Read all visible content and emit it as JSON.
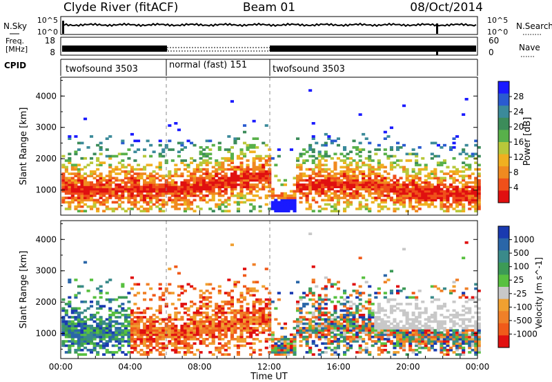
{
  "header": {
    "station": "Clyde River (fitACF)",
    "beam": "Beam 01",
    "date": "08/Oct/2014"
  },
  "strip_panels": {
    "nsky_label": "N.Sky",
    "nsearch_label": "N.Search",
    "log_top": "10^5",
    "log_bottom": "10^0",
    "freq_label_line1": "Freq.",
    "freq_label_line2": "[MHz]",
    "freq_ticks": [
      "18",
      "8"
    ],
    "nave_label": "Nave",
    "nave_ticks": [
      "60",
      "0"
    ],
    "cpid_label": "CPID"
  },
  "cpid_segments": [
    {
      "label": "twofsound 3503",
      "start_hour": 0,
      "end_hour": 6
    },
    {
      "label": "normal (fast) 151",
      "start_hour": 6,
      "end_hour": 12
    },
    {
      "label": "twofsound 3503",
      "start_hour": 12,
      "end_hour": 24
    }
  ],
  "chart_data": [
    {
      "type": "heatmap",
      "title": "Power",
      "xlabel": "",
      "ylabel": "Slant Range [km]",
      "y_ticks": [
        "1000",
        "2000",
        "3000",
        "4000"
      ],
      "ylim": [
        200,
        4600
      ],
      "colorbar_label": "Power [dB]",
      "colorbar_ticks": [
        "4",
        "8",
        "12",
        "16",
        "20",
        "24",
        "28"
      ],
      "colorbar_colors": [
        "#1a1aff",
        "#2a5bd0",
        "#3b8a9a",
        "#3c8c5a",
        "#58b04a",
        "#b8c83a",
        "#f0b020",
        "#f08a20",
        "#f0501a",
        "#e01010"
      ]
    },
    {
      "type": "heatmap",
      "title": "Velocity",
      "xlabel": "Time UT",
      "ylabel": "Slant Range [km]",
      "x_ticks": [
        "00:00",
        "04:00",
        "08:00",
        "12:00",
        "16:00",
        "20:00",
        "00:00"
      ],
      "y_ticks": [
        "1000",
        "2000",
        "3000",
        "4000"
      ],
      "ylim": [
        200,
        4600
      ],
      "colorbar_label": "Velocity [m s^-1]",
      "colorbar_ticks": [
        "1000",
        "500",
        "100",
        "25",
        "-25",
        "-100",
        "-500",
        "-1000"
      ],
      "colorbar_colors": [
        "#1a3ab0",
        "#2a66a8",
        "#3a8a8a",
        "#3c9a56",
        "#58c040",
        "#c8c8c8",
        "#f0a030",
        "#f08028",
        "#f05a1a",
        "#e01010"
      ]
    }
  ]
}
